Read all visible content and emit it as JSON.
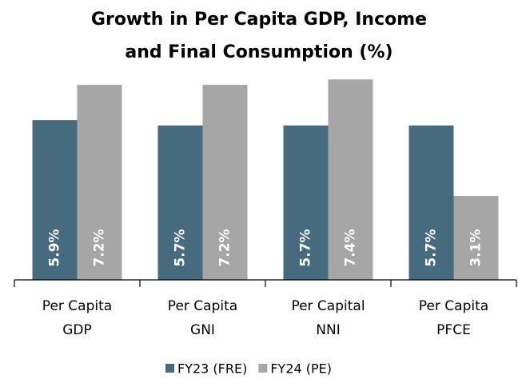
{
  "chart_data": {
    "type": "bar",
    "title": "Growth in Per Capita GDP, Income and Final Consumption (%)",
    "categories": [
      "Per Capita GDP",
      "Per Capita GNI",
      "Per Capital NNI",
      "Per Capita PFCE"
    ],
    "series": [
      {
        "name": "FY23 (FRE)",
        "color": "#466b7f",
        "values": [
          5.9,
          5.7,
          5.7,
          5.7
        ],
        "value_labels": [
          "5.9%",
          "5.7%",
          "5.7%",
          "5.7%"
        ]
      },
      {
        "name": "FY24 (PE)",
        "color": "#a6a6a6",
        "values": [
          7.2,
          7.2,
          7.4,
          3.1
        ],
        "value_labels": [
          "7.2%",
          "7.2%",
          "7.4%",
          "3.1%"
        ]
      }
    ],
    "ylim": [
      0,
      8
    ],
    "legend": "bottom"
  }
}
